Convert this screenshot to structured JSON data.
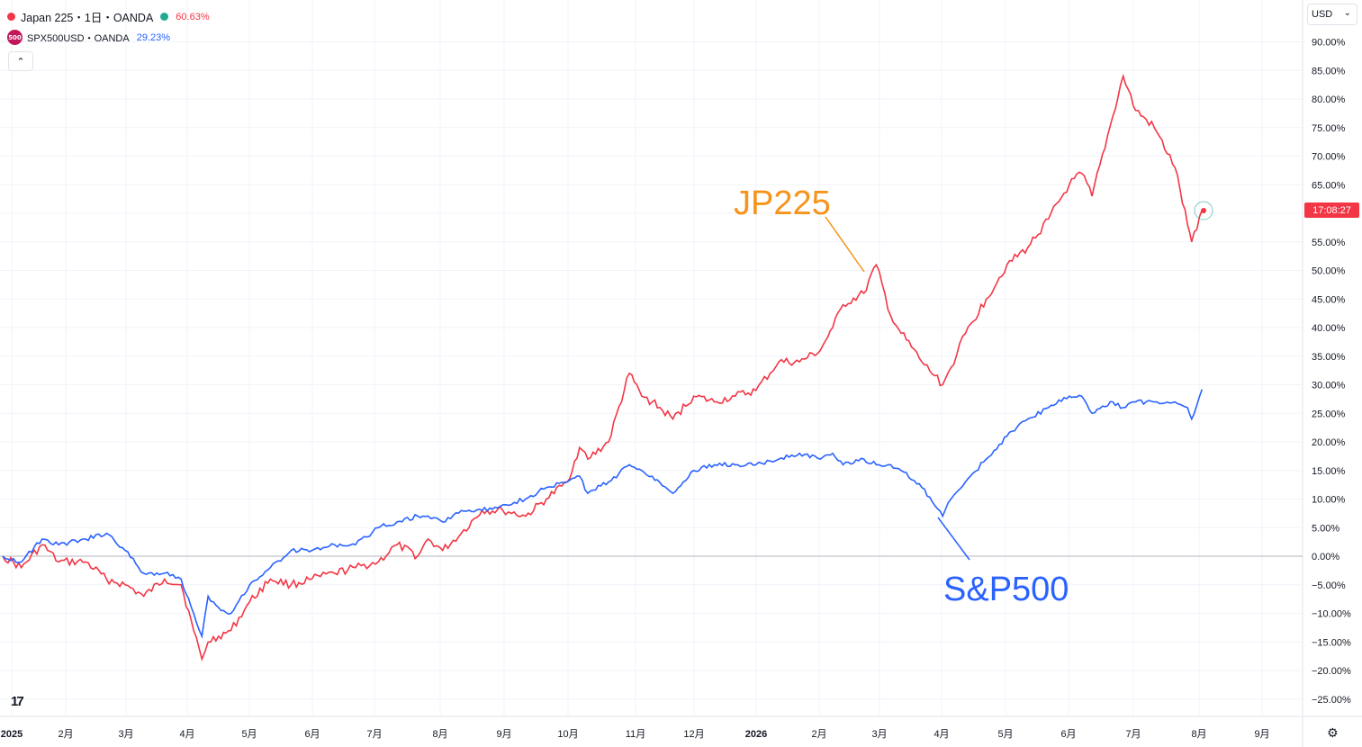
{
  "legend": {
    "series1": {
      "name": "Japan 225・1日・OANDA",
      "value": "60.63%",
      "color": "#f23645"
    },
    "series2": {
      "icon_text": "500",
      "name": "SPX500USD・OANDA",
      "value": "29.23%",
      "color": "#2962ff"
    }
  },
  "controls": {
    "currency": "USD",
    "collapse_icon": "chevron-up-icon",
    "settings_icon": "gear-icon",
    "logo_icon": "tradingview-logo-icon"
  },
  "price_label": "17:08:27",
  "annotations": {
    "jp": "JP225",
    "sp": "S&P500"
  },
  "chart_data": {
    "type": "line",
    "title": "",
    "xlabel": "",
    "ylabel": "",
    "y_unit": "%",
    "ylim": [
      -28,
      94
    ],
    "grid": true,
    "legend_position": "top-left",
    "x_ticks": [
      "2025",
      "2月",
      "3月",
      "4月",
      "5月",
      "6月",
      "7月",
      "8月",
      "9月",
      "10月",
      "11月",
      "12月",
      "2026",
      "2月",
      "3月",
      "4月",
      "5月",
      "6月",
      "7月",
      "8月",
      "9月"
    ],
    "y_ticks": [
      "90.00%",
      "85.00%",
      "80.00%",
      "75.00%",
      "70.00%",
      "65.00%",
      "60.00%",
      "55.00%",
      "50.00%",
      "45.00%",
      "40.00%",
      "35.00%",
      "30.00%",
      "25.00%",
      "20.00%",
      "15.00%",
      "10.00%",
      "5.00%",
      "0.00%",
      "−5.00%",
      "−10.00%",
      "−15.00%",
      "−20.00%",
      "−25.00%"
    ],
    "series": [
      {
        "name": "Japan 225",
        "color": "#f23645",
        "points": [
          [
            "2025-01-01",
            0
          ],
          [
            "2025-01-10",
            -2
          ],
          [
            "2025-01-20",
            2
          ],
          [
            "2025-01-28",
            -1
          ],
          [
            "2025-02-10",
            -1
          ],
          [
            "2025-02-20",
            -4
          ],
          [
            "2025-03-01",
            -5
          ],
          [
            "2025-03-10",
            -7
          ],
          [
            "2025-03-20",
            -4
          ],
          [
            "2025-03-28",
            -5
          ],
          [
            "2025-04-03",
            -13
          ],
          [
            "2025-04-07",
            -18
          ],
          [
            "2025-04-10",
            -15
          ],
          [
            "2025-04-15",
            -14
          ],
          [
            "2025-04-21",
            -13
          ],
          [
            "2025-04-30",
            -8
          ],
          [
            "2025-05-10",
            -4
          ],
          [
            "2025-05-20",
            -5
          ],
          [
            "2025-05-30",
            -4
          ],
          [
            "2025-06-10",
            -3
          ],
          [
            "2025-06-20",
            -2
          ],
          [
            "2025-07-01",
            -1
          ],
          [
            "2025-07-10",
            2
          ],
          [
            "2025-07-20",
            0
          ],
          [
            "2025-07-25",
            3
          ],
          [
            "2025-08-01",
            1
          ],
          [
            "2025-08-10",
            4
          ],
          [
            "2025-08-20",
            8
          ],
          [
            "2025-08-30",
            8
          ],
          [
            "2025-09-10",
            7
          ],
          [
            "2025-09-20",
            10
          ],
          [
            "2025-09-30",
            13
          ],
          [
            "2025-10-06",
            19
          ],
          [
            "2025-10-10",
            17
          ],
          [
            "2025-10-20",
            20
          ],
          [
            "2025-10-30",
            32
          ],
          [
            "2025-11-05",
            28
          ],
          [
            "2025-11-10",
            27
          ],
          [
            "2025-11-20",
            24
          ],
          [
            "2025-11-30",
            28
          ],
          [
            "2025-12-10",
            27
          ],
          [
            "2025-12-20",
            28
          ],
          [
            "2025-12-30",
            29
          ],
          [
            "2026-01-10",
            34
          ],
          [
            "2026-01-20",
            34
          ],
          [
            "2026-01-30",
            36
          ],
          [
            "2026-02-05",
            40
          ],
          [
            "2026-02-10",
            44
          ],
          [
            "2026-02-20",
            46
          ],
          [
            "2026-02-26",
            51
          ],
          [
            "2026-03-05",
            42
          ],
          [
            "2026-03-10",
            39
          ],
          [
            "2026-03-20",
            34
          ],
          [
            "2026-03-30",
            30
          ],
          [
            "2026-04-03",
            33
          ],
          [
            "2026-04-10",
            39
          ],
          [
            "2026-04-20",
            45
          ],
          [
            "2026-04-30",
            51
          ],
          [
            "2026-05-10",
            54
          ],
          [
            "2026-05-20",
            59
          ],
          [
            "2026-05-30",
            65
          ],
          [
            "2026-06-05",
            67
          ],
          [
            "2026-06-10",
            63
          ],
          [
            "2026-06-20",
            77
          ],
          [
            "2026-06-25",
            84
          ],
          [
            "2026-07-01",
            78
          ],
          [
            "2026-07-10",
            75
          ],
          [
            "2026-07-20",
            68
          ],
          [
            "2026-07-26",
            58
          ],
          [
            "2026-07-28",
            55
          ],
          [
            "2026-08-02",
            60.6
          ]
        ]
      },
      {
        "name": "SPX500USD",
        "color": "#2962ff",
        "points": [
          [
            "2025-01-01",
            0
          ],
          [
            "2025-01-10",
            -1
          ],
          [
            "2025-01-20",
            3
          ],
          [
            "2025-01-28",
            2
          ],
          [
            "2025-02-10",
            3
          ],
          [
            "2025-02-20",
            4
          ],
          [
            "2025-03-01",
            1
          ],
          [
            "2025-03-10",
            -3
          ],
          [
            "2025-03-20",
            -3
          ],
          [
            "2025-03-28",
            -4
          ],
          [
            "2025-04-03",
            -10
          ],
          [
            "2025-04-07",
            -14
          ],
          [
            "2025-04-10",
            -7
          ],
          [
            "2025-04-15",
            -9
          ],
          [
            "2025-04-21",
            -10
          ],
          [
            "2025-04-30",
            -5
          ],
          [
            "2025-05-10",
            -2
          ],
          [
            "2025-05-20",
            1
          ],
          [
            "2025-05-30",
            1
          ],
          [
            "2025-06-10",
            2
          ],
          [
            "2025-06-20",
            2
          ],
          [
            "2025-07-01",
            5
          ],
          [
            "2025-07-10",
            6
          ],
          [
            "2025-07-20",
            7
          ],
          [
            "2025-07-25",
            7
          ],
          [
            "2025-08-01",
            6
          ],
          [
            "2025-08-10",
            8
          ],
          [
            "2025-08-20",
            8
          ],
          [
            "2025-08-30",
            9
          ],
          [
            "2025-09-10",
            10
          ],
          [
            "2025-09-20",
            12
          ],
          [
            "2025-09-30",
            13
          ],
          [
            "2025-10-06",
            14
          ],
          [
            "2025-10-10",
            11
          ],
          [
            "2025-10-20",
            13
          ],
          [
            "2025-10-30",
            16
          ],
          [
            "2025-11-05",
            15
          ],
          [
            "2025-11-10",
            14
          ],
          [
            "2025-11-20",
            11
          ],
          [
            "2025-11-30",
            15
          ],
          [
            "2025-12-10",
            16
          ],
          [
            "2025-12-20",
            16
          ],
          [
            "2025-12-30",
            16
          ],
          [
            "2026-01-10",
            17
          ],
          [
            "2026-01-20",
            18
          ],
          [
            "2026-01-30",
            17
          ],
          [
            "2026-02-05",
            18
          ],
          [
            "2026-02-10",
            16
          ],
          [
            "2026-02-20",
            17
          ],
          [
            "2026-02-26",
            16
          ],
          [
            "2026-03-05",
            16
          ],
          [
            "2026-03-10",
            15
          ],
          [
            "2026-03-20",
            12
          ],
          [
            "2026-03-30",
            7
          ],
          [
            "2026-04-03",
            10
          ],
          [
            "2026-04-10",
            13
          ],
          [
            "2026-04-20",
            17
          ],
          [
            "2026-04-30",
            21
          ],
          [
            "2026-05-10",
            24
          ],
          [
            "2026-05-20",
            26
          ],
          [
            "2026-05-30",
            28
          ],
          [
            "2026-06-05",
            28
          ],
          [
            "2026-06-10",
            25
          ],
          [
            "2026-06-20",
            27
          ],
          [
            "2026-06-25",
            26
          ],
          [
            "2026-07-01",
            27
          ],
          [
            "2026-07-10",
            27
          ],
          [
            "2026-07-20",
            27
          ],
          [
            "2026-07-26",
            26
          ],
          [
            "2026-07-28",
            24
          ],
          [
            "2026-08-02",
            29.2
          ]
        ]
      }
    ]
  }
}
